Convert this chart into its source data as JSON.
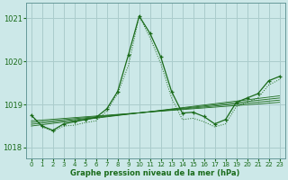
{
  "background_color": "#cce8e8",
  "grid_color": "#aacccc",
  "line_color": "#1a6b1a",
  "xlabel": "Graphe pression niveau de la mer (hPa)",
  "ylim": [
    1017.75,
    1021.35
  ],
  "xlim": [
    -0.5,
    23.5
  ],
  "yticks": [
    1018,
    1019,
    1020,
    1021
  ],
  "xticks": [
    0,
    1,
    2,
    3,
    4,
    5,
    6,
    7,
    8,
    9,
    10,
    11,
    12,
    13,
    14,
    15,
    16,
    17,
    18,
    19,
    20,
    21,
    22,
    23
  ],
  "hours": [
    0,
    1,
    2,
    3,
    4,
    5,
    6,
    7,
    8,
    9,
    10,
    11,
    12,
    13,
    14,
    15,
    16,
    17,
    18,
    19,
    20,
    21,
    22,
    23
  ],
  "pressure": [
    1018.75,
    1018.5,
    1018.4,
    1018.55,
    1018.6,
    1018.65,
    1018.7,
    1018.9,
    1019.3,
    1020.15,
    1021.05,
    1020.65,
    1020.1,
    1019.3,
    1018.8,
    1018.82,
    1018.72,
    1018.55,
    1018.65,
    1019.05,
    1019.15,
    1019.25,
    1019.55,
    1019.65
  ],
  "dotted": [
    1018.75,
    1018.48,
    1018.38,
    1018.5,
    1018.52,
    1018.58,
    1018.62,
    1018.85,
    1019.25,
    1019.9,
    1021.05,
    1020.55,
    1019.95,
    1019.15,
    1018.65,
    1018.68,
    1018.6,
    1018.48,
    1018.55,
    1018.95,
    1019.05,
    1019.15,
    1019.45,
    1019.58
  ],
  "trend_lines": [
    {
      "x": [
        0,
        23
      ],
      "y": [
        1018.62,
        1019.05
      ]
    },
    {
      "x": [
        0,
        23
      ],
      "y": [
        1018.58,
        1019.1
      ]
    },
    {
      "x": [
        0,
        23
      ],
      "y": [
        1018.54,
        1019.15
      ]
    },
    {
      "x": [
        0,
        23
      ],
      "y": [
        1018.5,
        1019.2
      ]
    }
  ]
}
